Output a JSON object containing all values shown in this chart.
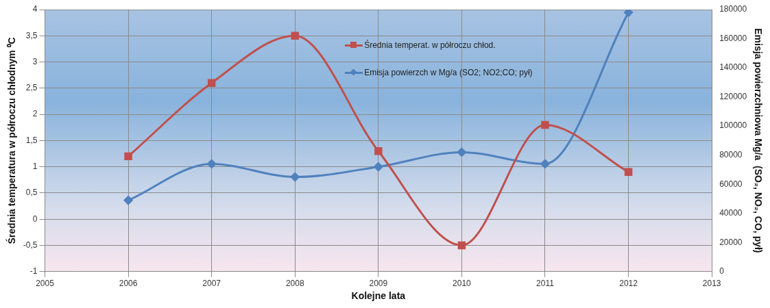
{
  "chart_data": {
    "type": "line",
    "xlabel": "Kolejne lata",
    "ylabel": "Średnia temperatura w półroczu chłodnym ⁰C",
    "y2label": "Emisja powierzchniowa Mg/a  (SO₂, NO₂, CO, pył)",
    "x": [
      2006,
      2007,
      2008,
      2009,
      2010,
      2011,
      2012
    ],
    "series": [
      {
        "name": "Średnia temperat. w półroczu chłod.",
        "color": "#c0504d",
        "marker": "square",
        "values": [
          1.2,
          2.6,
          3.5,
          1.3,
          -0.5,
          1.8,
          0.9
        ]
      },
      {
        "name": "Emisja powierzch w Mg/a (SO2; NO2;CO; pył)",
        "color": "#4f81bd",
        "marker": "diamond",
        "axis": "y2",
        "values": [
          49000,
          74000,
          65000,
          72000,
          82000,
          74000,
          178000
        ]
      }
    ],
    "xlim": [
      2005,
      2013
    ],
    "xticks": [
      2005,
      2006,
      2007,
      2008,
      2009,
      2010,
      2011,
      2012,
      2013
    ],
    "ylim": [
      -1,
      4
    ],
    "yticks": [
      -1,
      {
        "value": -0.5,
        "label": "-0,5"
      },
      0,
      {
        "value": 0.5,
        "label": "0,5"
      },
      1,
      {
        "value": 1.5,
        "label": "1,5"
      },
      2,
      {
        "value": 2.5,
        "label": "2,5"
      },
      3,
      {
        "value": 3.5,
        "label": "3,5"
      },
      4
    ],
    "y2lim": [
      0,
      180000
    ],
    "y2ticks": [
      0,
      20000,
      40000,
      60000,
      80000,
      100000,
      120000,
      140000,
      160000,
      180000
    ],
    "grid": true,
    "legend": "top right"
  }
}
